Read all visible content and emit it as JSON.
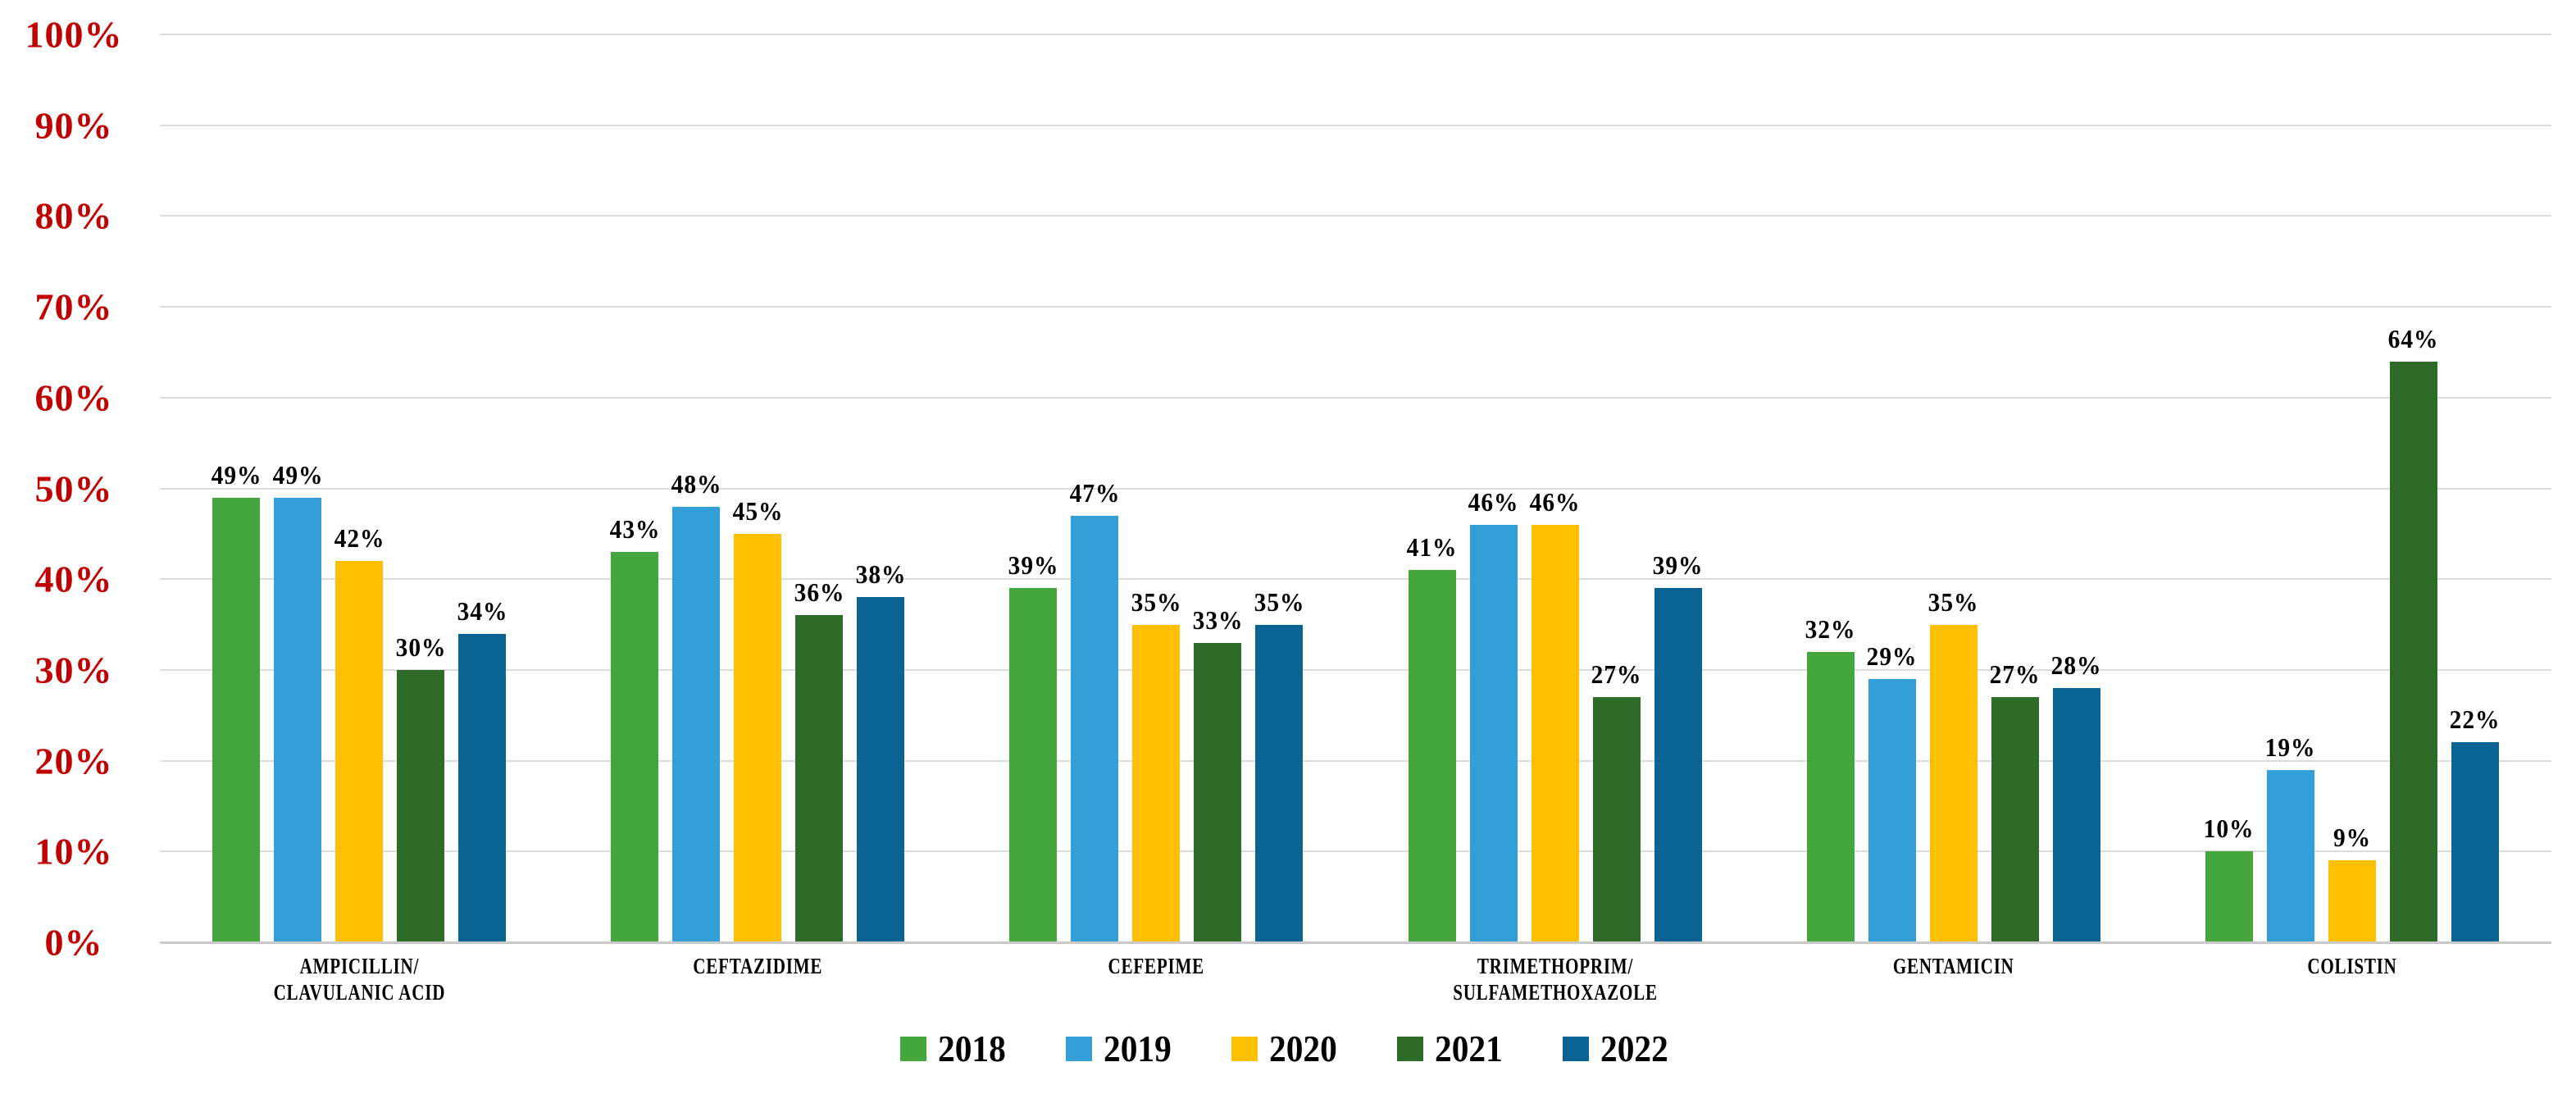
{
  "chart_data": {
    "type": "bar",
    "title": "",
    "xlabel": "",
    "ylabel": "",
    "ylim": [
      0,
      100
    ],
    "ytick_step": 10,
    "ytick_suffix": "%",
    "value_suffix": "%",
    "grid": true,
    "legend_position": "bottom",
    "categories": [
      {
        "lines": [
          "AMPICILLIN/",
          "CLAVULANIC ACID"
        ]
      },
      {
        "lines": [
          "CEFTAZIDIME"
        ]
      },
      {
        "lines": [
          "CEFEPIME"
        ]
      },
      {
        "lines": [
          "TRIMETHOPRIM/",
          "SULFAMETHOXAZOLE"
        ]
      },
      {
        "lines": [
          "GENTAMICIN"
        ]
      },
      {
        "lines": [
          "COLISTIN"
        ]
      }
    ],
    "series": [
      {
        "name": "2018",
        "color": "#45A63E",
        "values": [
          49,
          43,
          39,
          41,
          32,
          10
        ]
      },
      {
        "name": "2019",
        "color": "#339FD9",
        "values": [
          49,
          48,
          47,
          46,
          29,
          19
        ]
      },
      {
        "name": "2020",
        "color": "#FFC003",
        "values": [
          42,
          45,
          35,
          46,
          35,
          9
        ]
      },
      {
        "name": "2021",
        "color": "#2E6A28",
        "values": [
          30,
          36,
          33,
          27,
          27,
          64
        ]
      },
      {
        "name": "2022",
        "color": "#0B6394",
        "values": [
          34,
          38,
          35,
          39,
          28,
          22
        ]
      }
    ],
    "colors": {
      "axis_label": "#C00000",
      "value_label": "#000000",
      "gridline": "#DCDCDC",
      "axis_line": "#C9C9C9",
      "background": "#FFFFFF"
    }
  }
}
